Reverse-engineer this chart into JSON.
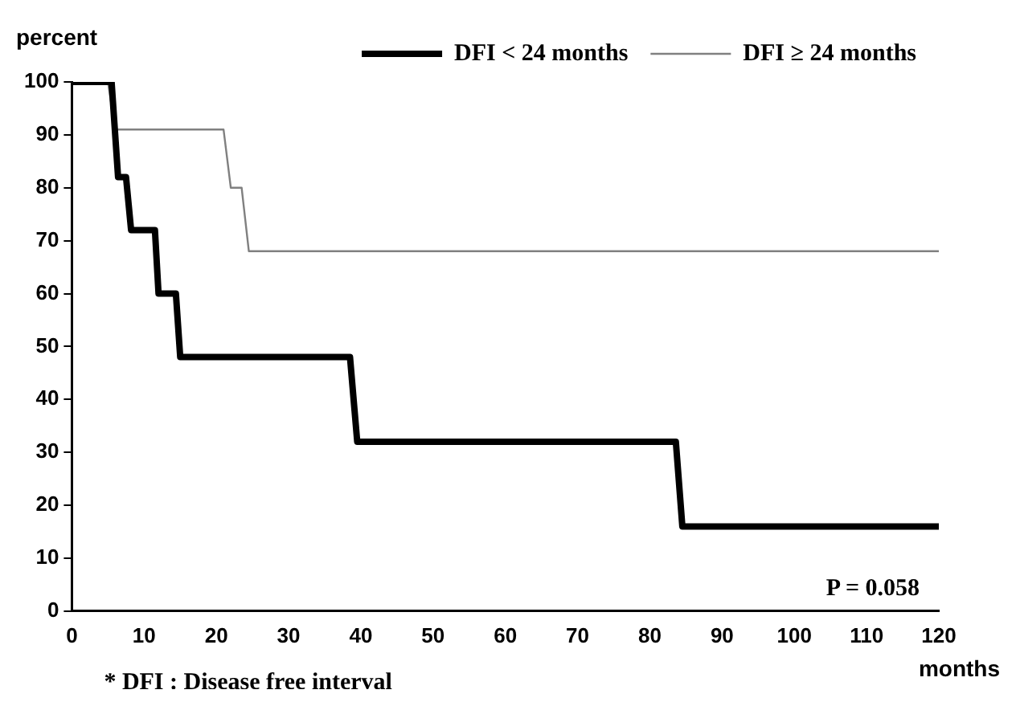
{
  "chart_data": {
    "type": "line",
    "ylabel": "percent",
    "xlabel": "months",
    "xlim": [
      0,
      120
    ],
    "xticks": [
      0,
      10,
      20,
      30,
      40,
      50,
      60,
      70,
      80,
      90,
      100,
      110,
      120
    ],
    "ylim": [
      0,
      100
    ],
    "yticks": [
      0,
      10,
      20,
      30,
      40,
      50,
      60,
      70,
      80,
      90,
      100
    ],
    "grid": false,
    "legend": "top right",
    "marker": "none",
    "line_style": "solid",
    "series": [
      {
        "name": "DFI < 24 months",
        "color": "#000000",
        "x": [
          0,
          5.5,
          6.4,
          7.5,
          8.2,
          11.5,
          12,
          14.4,
          15,
          38.5,
          39.5,
          83.6,
          84.5,
          120
        ],
        "values": [
          100,
          100,
          82,
          82,
          72,
          72,
          60,
          60,
          48,
          48,
          32,
          32,
          16,
          16
        ]
      },
      {
        "name": "DFI ≥ 24 months",
        "color": "#808080",
        "x": [
          0,
          5,
          6,
          21,
          22,
          23.5,
          24.5,
          120
        ],
        "values": [
          100,
          100,
          91,
          91,
          80,
          80,
          68,
          68
        ]
      }
    ],
    "annotations": [
      "P = 0.058",
      "* DFI : Disease free interval"
    ]
  }
}
